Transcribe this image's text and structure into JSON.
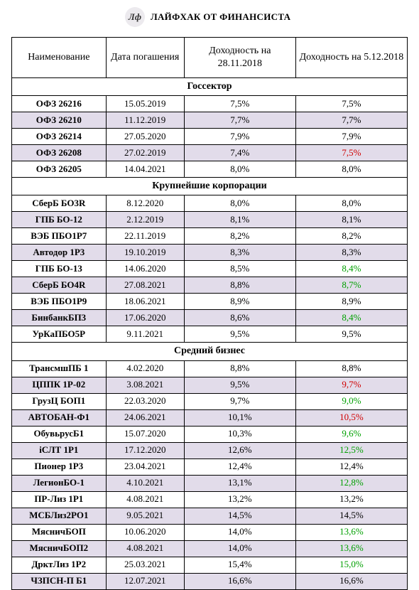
{
  "header": {
    "logo_text": "Лф",
    "title": "ЛАЙФХАК ОТ ФИНАНСИСТА"
  },
  "columns": [
    "Наименование",
    "Дата погашения",
    "Доходность на 28.11.2018",
    "Доходность на 5.12.2018"
  ],
  "colors": {
    "black": "#000000",
    "green": "#00a000",
    "red": "#d00000",
    "shade": "#e2dcea",
    "background": "#ffffff"
  },
  "sections": [
    {
      "title": "Госсектор",
      "rows": [
        {
          "name": "ОФЗ 26216",
          "date": "15.05.2019",
          "y1": "7,5%",
          "y2": "7,5%",
          "y2_color": "black",
          "shaded": false
        },
        {
          "name": "ОФЗ 26210",
          "date": "11.12.2019",
          "y1": "7,7%",
          "y2": "7,7%",
          "y2_color": "black",
          "shaded": true
        },
        {
          "name": "ОФЗ 26214",
          "date": "27.05.2020",
          "y1": "7,9%",
          "y2": "7,9%",
          "y2_color": "black",
          "shaded": false
        },
        {
          "name": "ОФЗ 26208",
          "date": "27.02.2019",
          "y1": "7,4%",
          "y2": "7,5%",
          "y2_color": "red",
          "shaded": true
        },
        {
          "name": "ОФЗ 26205",
          "date": "14.04.2021",
          "y1": "8,0%",
          "y2": "8,0%",
          "y2_color": "black",
          "shaded": false
        }
      ]
    },
    {
      "title": "Крупнейшие корпорации",
      "rows": [
        {
          "name": "СберБ БО3R",
          "date": "8.12.2020",
          "y1": "8,0%",
          "y2": "8,0%",
          "y2_color": "black",
          "shaded": false
        },
        {
          "name": "ГПБ БО-12",
          "date": "2.12.2019",
          "y1": "8,1%",
          "y2": "8,1%",
          "y2_color": "black",
          "shaded": true
        },
        {
          "name": "ВЭБ ПБО1Р7",
          "date": "22.11.2019",
          "y1": "8,2%",
          "y2": "8,2%",
          "y2_color": "black",
          "shaded": false
        },
        {
          "name": "Автодор 1Р3",
          "date": "19.10.2019",
          "y1": "8,3%",
          "y2": "8,3%",
          "y2_color": "black",
          "shaded": true
        },
        {
          "name": "ГПБ БО-13",
          "date": "14.06.2020",
          "y1": "8,5%",
          "y2": "8,4%",
          "y2_color": "green",
          "shaded": false
        },
        {
          "name": "СберБ БО4R",
          "date": "27.08.2021",
          "y1": "8,8%",
          "y2": "8,7%",
          "y2_color": "green",
          "shaded": true
        },
        {
          "name": "ВЭБ ПБО1Р9",
          "date": "18.06.2021",
          "y1": "8,9%",
          "y2": "8,9%",
          "y2_color": "black",
          "shaded": false
        },
        {
          "name": "БинбанкБП3",
          "date": "17.06.2020",
          "y1": "8,6%",
          "y2": "8,4%",
          "y2_color": "green",
          "shaded": true
        },
        {
          "name": "УрКаПБО5Р",
          "date": "9.11.2021",
          "y1": "9,5%",
          "y2": "9,5%",
          "y2_color": "black",
          "shaded": false
        }
      ]
    },
    {
      "title": "Средний бизнес",
      "rows": [
        {
          "name": "ТрансмшПБ 1",
          "date": "4.02.2020",
          "y1": "8,8%",
          "y2": "8,8%",
          "y2_color": "black",
          "shaded": false
        },
        {
          "name": "ЦППК 1Р-02",
          "date": "3.08.2021",
          "y1": "9,5%",
          "y2": "9,7%",
          "y2_color": "red",
          "shaded": true
        },
        {
          "name": "ГрузЦ БОП1",
          "date": "22.03.2020",
          "y1": "9,7%",
          "y2": "9,0%",
          "y2_color": "green",
          "shaded": false
        },
        {
          "name": "АВТОБАН-Ф1",
          "date": "24.06.2021",
          "y1": "10,1%",
          "y2": "10,5%",
          "y2_color": "red",
          "shaded": true
        },
        {
          "name": "ОбувьрусБ1",
          "date": "15.07.2020",
          "y1": "10,3%",
          "y2": "9,6%",
          "y2_color": "green",
          "shaded": false
        },
        {
          "name": "iСЛТ 1Р1",
          "date": "17.12.2020",
          "y1": "12,6%",
          "y2": "12,5%",
          "y2_color": "green",
          "shaded": true
        },
        {
          "name": "Пионер 1Р3",
          "date": "23.04.2021",
          "y1": "12,4%",
          "y2": "12,4%",
          "y2_color": "black",
          "shaded": false
        },
        {
          "name": "ЛегионБО-1",
          "date": "4.10.2021",
          "y1": "13,1%",
          "y2": "12,8%",
          "y2_color": "green",
          "shaded": true
        },
        {
          "name": "ПР-Лиз 1Р1",
          "date": "4.08.2021",
          "y1": "13,2%",
          "y2": "13,2%",
          "y2_color": "black",
          "shaded": false
        },
        {
          "name": "МСБЛиз2РО1",
          "date": "9.05.2021",
          "y1": "14,5%",
          "y2": "14,5%",
          "y2_color": "black",
          "shaded": true
        },
        {
          "name": "МясничБОП",
          "date": "10.06.2020",
          "y1": "14,0%",
          "y2": "13,6%",
          "y2_color": "green",
          "shaded": false
        },
        {
          "name": "МясничБОП2",
          "date": "4.08.2021",
          "y1": "14,0%",
          "y2": "13,6%",
          "y2_color": "green",
          "shaded": true
        },
        {
          "name": "ДрктЛиз 1Р2",
          "date": "25.03.2021",
          "y1": "15,4%",
          "y2": "15,0%",
          "y2_color": "green",
          "shaded": false
        },
        {
          "name": "ЧЗПСН-П Б1",
          "date": "12.07.2021",
          "y1": "16,6%",
          "y2": "16,6%",
          "y2_color": "black",
          "shaded": true
        }
      ]
    }
  ]
}
